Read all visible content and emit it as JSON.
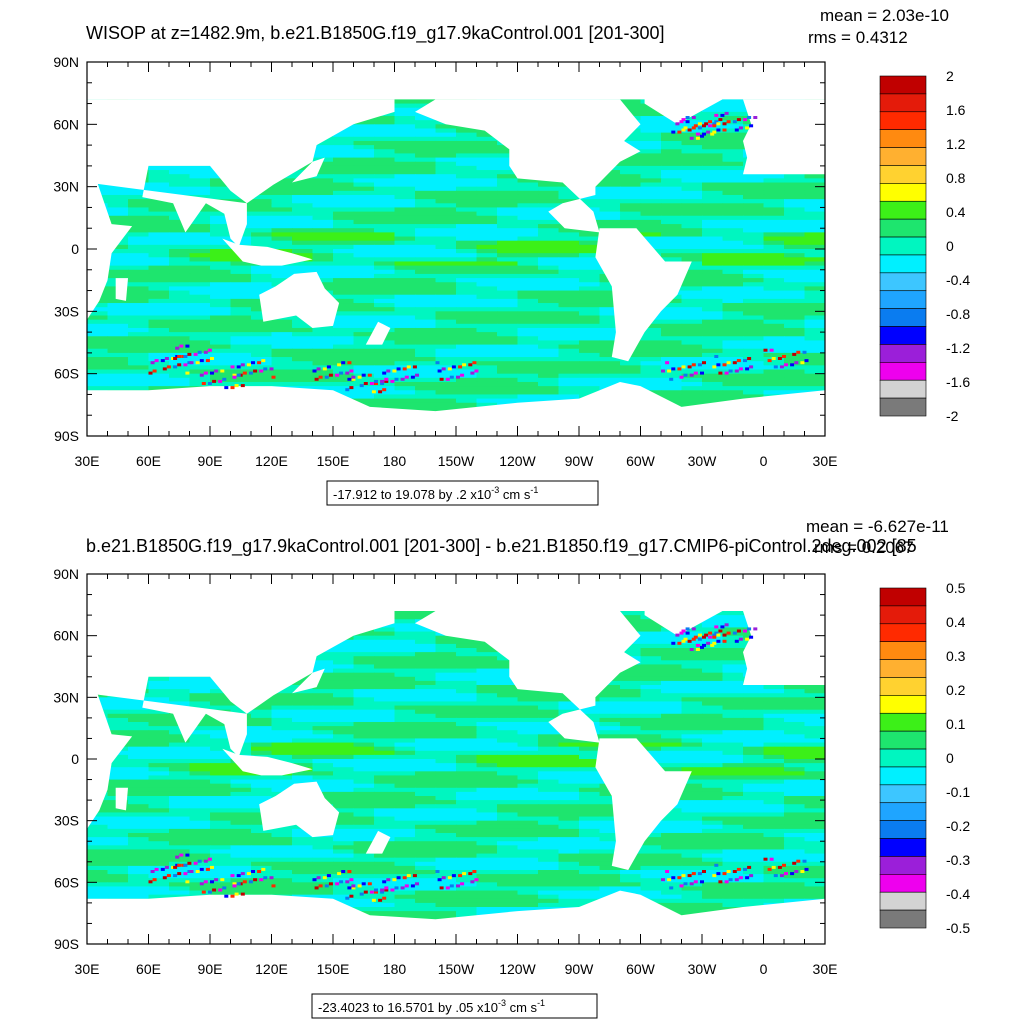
{
  "colors": {
    "palette_16": [
      "#7a7a7a",
      "#d3d3d3",
      "#ee00ee",
      "#9b1fd9",
      "#0000ff",
      "#0a7cf0",
      "#1fa5ff",
      "#3dc6ff",
      "#00f0ff",
      "#00f6c0",
      "#1ee56e",
      "#3cf018",
      "#ffff00",
      "#ffd230",
      "#ffb030",
      "#ff8a10",
      "#ff2a00",
      "#e41b0a",
      "#c00000"
    ],
    "land": "#ffffff",
    "frame": "#000000"
  },
  "chart_data": [
    {
      "type": "heatmap",
      "title": "WISOP at z=1482.9m, b.e21.B1850G.f19_g17.9kaControl.001 [201-300]",
      "stats": {
        "mean": "mean = 2.03e-10",
        "rms": "rms = 0.4312"
      },
      "x_tick_labels": [
        "30E",
        "60E",
        "90E",
        "120E",
        "150E",
        "180",
        "150W",
        "120W",
        "90W",
        "60W",
        "30W",
        "0",
        "30E"
      ],
      "y_tick_labels": [
        "90N",
        "60N",
        "30N",
        "0",
        "30S",
        "60S",
        "90S"
      ],
      "xlim": [
        30,
        390
      ],
      "ylim": [
        -90,
        90
      ],
      "colorbar": {
        "levels": [
          2,
          1.6,
          1.2,
          0.8,
          0.4,
          0,
          -0.4,
          -0.8,
          -1.2,
          -1.6,
          -2
        ],
        "labels": [
          "2",
          "1.6",
          "1.2",
          "0.8",
          "0.4",
          "0",
          "-0.4",
          "-0.8",
          "-1.2",
          "-1.6",
          "-2"
        ]
      },
      "range_label": "-17.912 to 19.078 by .2 x10",
      "range_exp": "-3",
      "range_unit": " cm s",
      "range_unit_exp": "-1"
    },
    {
      "type": "heatmap",
      "title": "b.e21.B1850G.f19_g17.9kaControl.001 [201-300] - b.e21.B1850.f19_g17.CMIP6-piControl.2deg.002 [85",
      "stats": {
        "mean": "mean = -6.627e-11",
        "rms": "rms = 0.2067"
      },
      "x_tick_labels": [
        "30E",
        "60E",
        "90E",
        "120E",
        "150E",
        "180",
        "150W",
        "120W",
        "90W",
        "60W",
        "30W",
        "0",
        "30E"
      ],
      "y_tick_labels": [
        "90N",
        "60N",
        "30N",
        "0",
        "30S",
        "60S",
        "90S"
      ],
      "xlim": [
        30,
        390
      ],
      "ylim": [
        -90,
        90
      ],
      "colorbar": {
        "levels": [
          0.5,
          0.4,
          0.3,
          0.2,
          0.1,
          0,
          -0.1,
          -0.2,
          -0.3,
          -0.4,
          -0.5
        ],
        "labels": [
          "0.5",
          "0.4",
          "0.3",
          "0.2",
          "0.1",
          "0",
          "-0.1",
          "-0.2",
          "-0.3",
          "-0.4",
          "-0.5"
        ]
      },
      "range_label": "-23.4023 to 16.5701 by .05 x10",
      "range_exp": "-3",
      "range_unit": " cm s",
      "range_unit_exp": "-1"
    }
  ]
}
